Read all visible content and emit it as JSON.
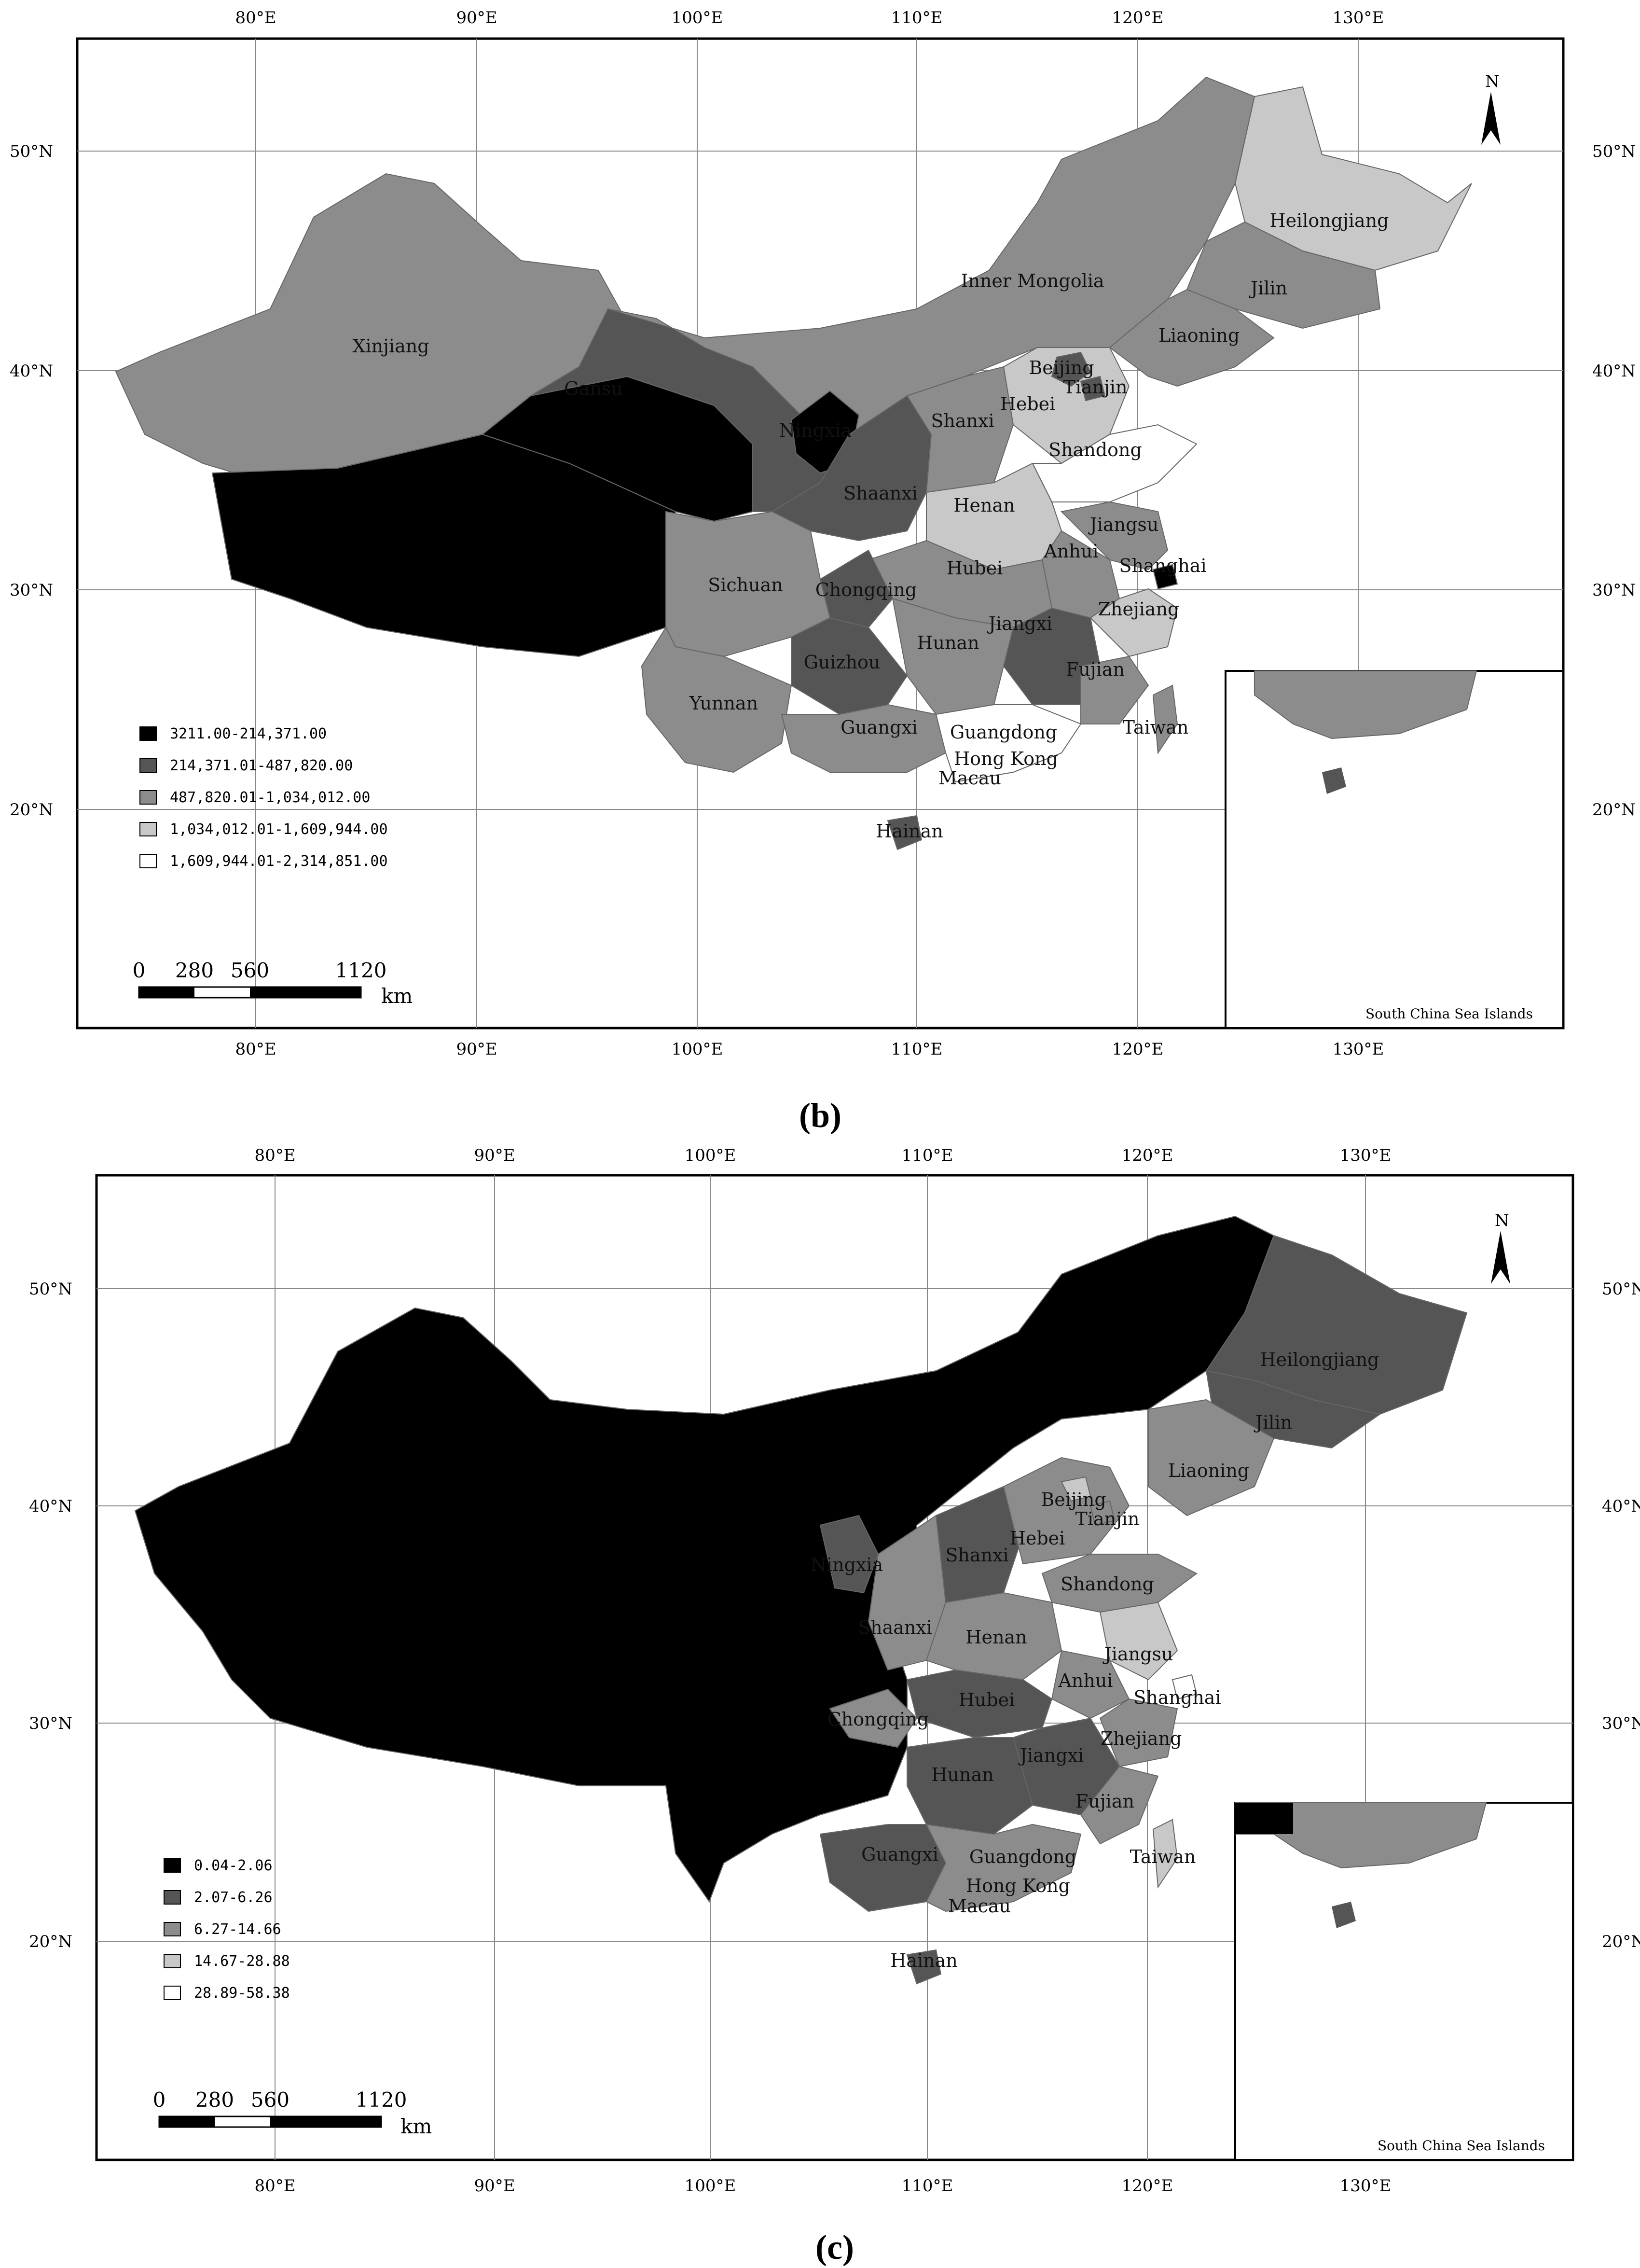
{
  "ticks": {
    "lon": [
      "80°E",
      "90°E",
      "100°E",
      "110°E",
      "120°E",
      "130°E"
    ],
    "lat": [
      "50°N",
      "40°N",
      "30°N",
      "20°N"
    ]
  },
  "north": "N",
  "inset_title": "South China Sea Islands",
  "scalebar": {
    "labels": [
      "0",
      "280",
      "560",
      "1120"
    ],
    "unit": "km"
  },
  "colors": {
    "class1": "#000000",
    "class2": "#555555",
    "class3": "#8c8c8c",
    "class4": "#c8c8c8",
    "class5": "#ffffff"
  },
  "maps": [
    {
      "caption": "(b)",
      "legend": [
        "3211.00-214,371.00",
        "214,371.01-487,820.00",
        "487,820.01-1,034,012.00",
        "1,034,012.01-1,609,944.00",
        "1,609,944.01-2,314,851.00"
      ],
      "provinces": [
        "Xinjiang",
        "Gansu",
        "Ningxia",
        "Inner Mongolia",
        "Heilongjiang",
        "Jilin",
        "Liaoning",
        "Beijing",
        "Tianjin",
        "Hebei",
        "Shanxi",
        "Shandong",
        "Shaanxi",
        "Henan",
        "Jiangsu",
        "Anhui",
        "Shanghai",
        "Sichuan",
        "Chongqing",
        "Hubei",
        "Zhejiang",
        "Jiangxi",
        "Hunan",
        "Guizhou",
        "Fujian",
        "Yunnan",
        "Guangxi",
        "Guangdong",
        "Taiwan",
        "Hong Kong",
        "Macau",
        "Hainan"
      ]
    },
    {
      "caption": "(c)",
      "legend": [
        "0.04-2.06",
        "2.07-6.26",
        "6.27-14.66",
        "14.67-28.88",
        "28.89-58.38"
      ],
      "provinces": [
        "Heilongjiang",
        "Jilin",
        "Liaoning",
        "Beijing",
        "Tianjin",
        "Hebei",
        "Ningxia",
        "Shanxi",
        "Shandong",
        "Shaanxi",
        "Henan",
        "Jiangsu",
        "Anhui",
        "Shanghai",
        "Chongqing",
        "Hubei",
        "Zhejiang",
        "Hunan",
        "Jiangxi",
        "Fujian",
        "Guangxi",
        "Guangdong",
        "Taiwan",
        "Hong Kong",
        "Macau",
        "Hainan"
      ]
    }
  ]
}
